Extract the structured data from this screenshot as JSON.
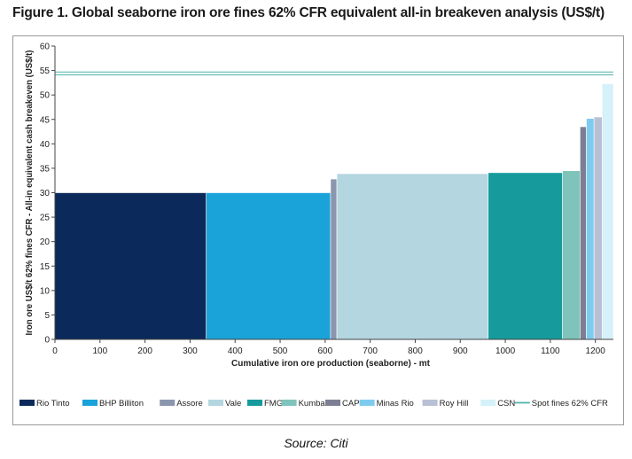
{
  "title": "Figure 1. Global seaborne iron ore fines 62% CFR equivalent all-in breakeven analysis (US$/t)",
  "source": "Source: Citi",
  "chart_data": {
    "type": "bar",
    "subtype": "cost-curve (variable-width bars)",
    "title": "Figure 1. Global seaborne iron ore fines 62% CFR equivalent all-in breakeven analysis (US$/t)",
    "xlabel": "Cumulative iron ore production (seaborne) - mt",
    "ylabel": "Iron ore US$/t 62% fines CFR - All-in equivalent cash breakeven (US$/t)",
    "xlim": [
      0,
      1240
    ],
    "ylim": [
      0,
      60
    ],
    "xticks": [
      0,
      100,
      200,
      300,
      400,
      500,
      600,
      700,
      800,
      900,
      1000,
      1100,
      1200
    ],
    "yticks": [
      0,
      5,
      10,
      15,
      20,
      25,
      30,
      35,
      40,
      45,
      50,
      55,
      60
    ],
    "legend_position": "bottom",
    "grid": false,
    "series": [
      {
        "name": "Rio Tinto",
        "x_start": 0,
        "x_end": 336,
        "value": 30,
        "color": "#0b2a5b"
      },
      {
        "name": "BHP Billiton",
        "x_start": 336,
        "x_end": 612,
        "value": 30,
        "color": "#1aa3d9"
      },
      {
        "name": "Assore",
        "x_start": 612,
        "x_end": 626,
        "value": 32.8,
        "color": "#8a96ad"
      },
      {
        "name": "Vale",
        "x_start": 626,
        "x_end": 962,
        "value": 33.9,
        "color": "#b3d6e0"
      },
      {
        "name": "FMG",
        "x_start": 962,
        "x_end": 1127,
        "value": 34.1,
        "color": "#169a9c"
      },
      {
        "name": "Kumba",
        "x_start": 1127,
        "x_end": 1166,
        "value": 34.5,
        "color": "#7fc4ba"
      },
      {
        "name": "CAP",
        "x_start": 1166,
        "x_end": 1180,
        "value": 43.5,
        "color": "#7c7f94"
      },
      {
        "name": "Minas Rio",
        "x_start": 1180,
        "x_end": 1197,
        "value": 45.2,
        "color": "#7ecbf0"
      },
      {
        "name": "Roy Hill",
        "x_start": 1197,
        "x_end": 1215,
        "value": 45.5,
        "color": "#b8c0d4"
      },
      {
        "name": "CSN",
        "x_start": 1215,
        "x_end": 1240,
        "value": 52.3,
        "color": "#d5f1f9"
      }
    ],
    "reference_lines": [
      {
        "name": "Spot fines 62% CFR",
        "value": 54.4,
        "color": "#4fb3ad"
      }
    ]
  }
}
